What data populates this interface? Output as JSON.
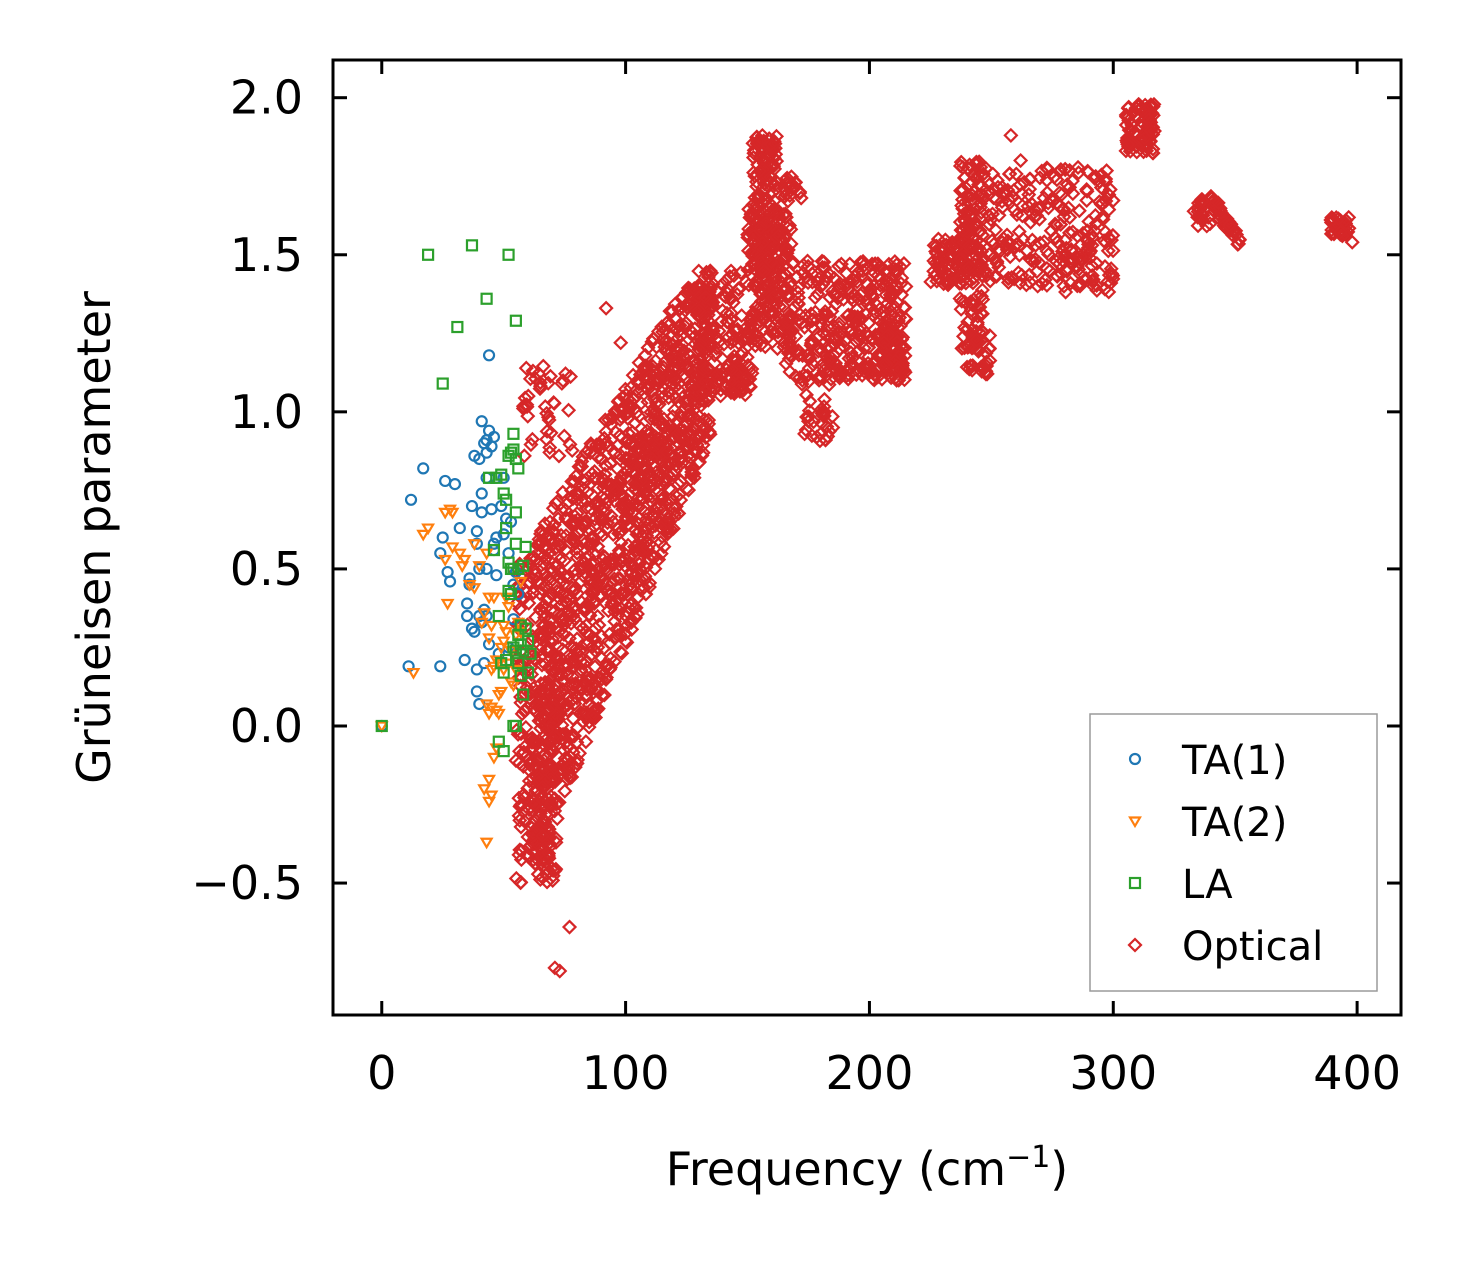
{
  "chart_data": {
    "type": "scatter",
    "title": "",
    "xlabel": "Frequency (cm",
    "xlabel_superscript": "−1",
    "xlabel_suffix": ")",
    "ylabel": "Grüneisen parameter",
    "xlim": [
      -20,
      418
    ],
    "ylim": [
      -0.92,
      2.12
    ],
    "xticks": [
      0,
      100,
      200,
      300,
      400
    ],
    "xtick_labels": [
      "0",
      "100",
      "200",
      "300",
      "400"
    ],
    "yticks": [
      -0.5,
      0.0,
      0.5,
      1.0,
      1.5,
      2.0
    ],
    "ytick_labels": [
      "−0.5",
      "0.0",
      "0.5",
      "1.0",
      "1.5",
      "2.0"
    ],
    "grid": false,
    "legend_position": "lower-right",
    "series": [
      {
        "name": "TA(1)",
        "marker": "circle",
        "color": "#1f77b4",
        "points": [
          [
            0,
            0.0
          ],
          [
            12,
            0.72
          ],
          [
            11,
            0.19
          ],
          [
            17,
            0.82
          ],
          [
            24,
            0.19
          ],
          [
            24,
            0.55
          ],
          [
            25,
            0.6
          ],
          [
            26,
            0.78
          ],
          [
            27,
            0.49
          ],
          [
            28,
            0.46
          ],
          [
            30,
            0.77
          ],
          [
            32,
            0.63
          ],
          [
            34,
            0.21
          ],
          [
            35,
            0.39
          ],
          [
            35,
            0.35
          ],
          [
            36,
            0.45
          ],
          [
            36,
            0.47
          ],
          [
            37,
            0.31
          ],
          [
            37,
            0.7
          ],
          [
            38,
            0.86
          ],
          [
            38,
            0.3
          ],
          [
            39,
            0.11
          ],
          [
            39,
            0.18
          ],
          [
            39,
            0.62
          ],
          [
            39,
            0.58
          ],
          [
            40,
            0.07
          ],
          [
            40,
            0.85
          ],
          [
            40,
            0.35
          ],
          [
            40,
            0.5
          ],
          [
            41,
            0.97
          ],
          [
            41,
            0.74
          ],
          [
            41,
            0.68
          ],
          [
            41,
            0.33
          ],
          [
            42,
            0.9
          ],
          [
            42,
            0.2
          ],
          [
            42,
            0.37
          ],
          [
            43,
            0.91
          ],
          [
            43,
            0.87
          ],
          [
            43,
            0.79
          ],
          [
            43,
            0.5
          ],
          [
            43,
            0.35
          ],
          [
            44,
            0.94
          ],
          [
            44,
            1.18
          ],
          [
            44,
            0.26
          ],
          [
            45,
            0.89
          ],
          [
            45,
            0.69
          ],
          [
            46,
            0.92
          ],
          [
            46,
            0.56
          ],
          [
            46,
            0.58
          ],
          [
            47,
            0.79
          ],
          [
            47,
            0.6
          ],
          [
            47,
            0.48
          ],
          [
            48,
            0.23
          ],
          [
            49,
            0.7
          ],
          [
            50,
            0.61
          ],
          [
            50,
            0.79
          ],
          [
            51,
            0.66
          ],
          [
            52,
            0.55
          ],
          [
            53,
            0.65
          ],
          [
            54,
            0.45
          ],
          [
            55,
            0.49
          ],
          [
            56,
            0.42
          ],
          [
            54,
            0.34
          ],
          [
            52,
            0.25
          ]
        ]
      },
      {
        "name": "TA(2)",
        "marker": "triangle-down",
        "color": "#ff7f0e",
        "points": [
          [
            0,
            0.0
          ],
          [
            13,
            0.17
          ],
          [
            17,
            0.61
          ],
          [
            19,
            0.63
          ],
          [
            26,
            0.68
          ],
          [
            28,
            0.69
          ],
          [
            29,
            0.68
          ],
          [
            26,
            0.53
          ],
          [
            29,
            0.57
          ],
          [
            32,
            0.55
          ],
          [
            34,
            0.53
          ],
          [
            27,
            0.39
          ],
          [
            33,
            0.51
          ],
          [
            36,
            0.45
          ],
          [
            38,
            0.58
          ],
          [
            38,
            0.44
          ],
          [
            40,
            0.51
          ],
          [
            41,
            0.33
          ],
          [
            42,
            0.36
          ],
          [
            43,
            0.55
          ],
          [
            44,
            0.41
          ],
          [
            44,
            0.28
          ],
          [
            45,
            0.18
          ],
          [
            45,
            0.32
          ],
          [
            46,
            0.19
          ],
          [
            46,
            0.41
          ],
          [
            47,
            0.21
          ],
          [
            47,
            0.05
          ],
          [
            48,
            0.1
          ],
          [
            48,
            0.2
          ],
          [
            49,
            0.25
          ],
          [
            49,
            0.11
          ],
          [
            50,
            0.27
          ],
          [
            50,
            0.18
          ],
          [
            51,
            0.41
          ],
          [
            51,
            0.3
          ],
          [
            52,
            0.38
          ],
          [
            52,
            0.2
          ],
          [
            53,
            0.24
          ],
          [
            53,
            0.14
          ],
          [
            43,
            0.07
          ],
          [
            44,
            0.04
          ],
          [
            45,
            0.06
          ],
          [
            46,
            -0.1
          ],
          [
            47,
            -0.07
          ],
          [
            44,
            -0.17
          ],
          [
            42,
            -0.2
          ],
          [
            44,
            -0.24
          ],
          [
            45,
            -0.22
          ],
          [
            43,
            -0.37
          ],
          [
            48,
            0.04
          ],
          [
            54,
            0.13
          ],
          [
            55,
            0.18
          ],
          [
            56,
            0.33
          ],
          [
            57,
            0.3
          ],
          [
            57,
            0.46
          ],
          [
            55,
            0.29
          ],
          [
            50,
            0.32
          ]
        ]
      },
      {
        "name": "LA",
        "marker": "square",
        "color": "#2ca02c",
        "points": [
          [
            0,
            0.0
          ],
          [
            19,
            1.5
          ],
          [
            25,
            1.09
          ],
          [
            31,
            1.27
          ],
          [
            37,
            1.53
          ],
          [
            43,
            1.36
          ],
          [
            52,
            1.5
          ],
          [
            55,
            1.29
          ],
          [
            44,
            0.79
          ],
          [
            47,
            0.79
          ],
          [
            49,
            0.8
          ],
          [
            50,
            0.74
          ],
          [
            51,
            0.72
          ],
          [
            51,
            0.63
          ],
          [
            52,
            0.86
          ],
          [
            53,
            0.87
          ],
          [
            54,
            0.93
          ],
          [
            54,
            0.88
          ],
          [
            55,
            0.85
          ],
          [
            55,
            0.68
          ],
          [
            55,
            0.58
          ],
          [
            56,
            0.82
          ],
          [
            56,
            0.5
          ],
          [
            52,
            0.52
          ],
          [
            52,
            0.43
          ],
          [
            53,
            0.42
          ],
          [
            54,
            0.25
          ],
          [
            55,
            0.24
          ],
          [
            56,
            0.29
          ],
          [
            57,
            0.26
          ],
          [
            57,
            0.32
          ],
          [
            58,
            0.24
          ],
          [
            58,
            0.51
          ],
          [
            59,
            0.57
          ],
          [
            59,
            0.31
          ],
          [
            60,
            0.27
          ],
          [
            60,
            0.17
          ],
          [
            61,
            0.23
          ],
          [
            46,
            0.56
          ],
          [
            48,
            0.35
          ],
          [
            49,
            0.2
          ],
          [
            50,
            0.17
          ],
          [
            51,
            0.21
          ],
          [
            48,
            -0.05
          ],
          [
            50,
            -0.08
          ],
          [
            54,
            0.0
          ],
          [
            55,
            0.0
          ],
          [
            56,
            0.2
          ],
          [
            57,
            0.16
          ],
          [
            58,
            0.1
          ],
          [
            53,
            0.5
          ],
          [
            54,
            0.5
          ]
        ]
      },
      {
        "name": "Optical",
        "marker": "diamond",
        "color": "#d62728",
        "generated": true,
        "points": []
      }
    ]
  },
  "legend": {
    "items": [
      {
        "label": "TA(1)",
        "color": "#1f77b4",
        "marker": "circle"
      },
      {
        "label": "TA(2)",
        "color": "#ff7f0e",
        "marker": "triangle-down"
      },
      {
        "label": "LA",
        "color": "#2ca02c",
        "marker": "square"
      },
      {
        "label": "Optical",
        "color": "#d62728",
        "marker": "diamond"
      }
    ]
  }
}
